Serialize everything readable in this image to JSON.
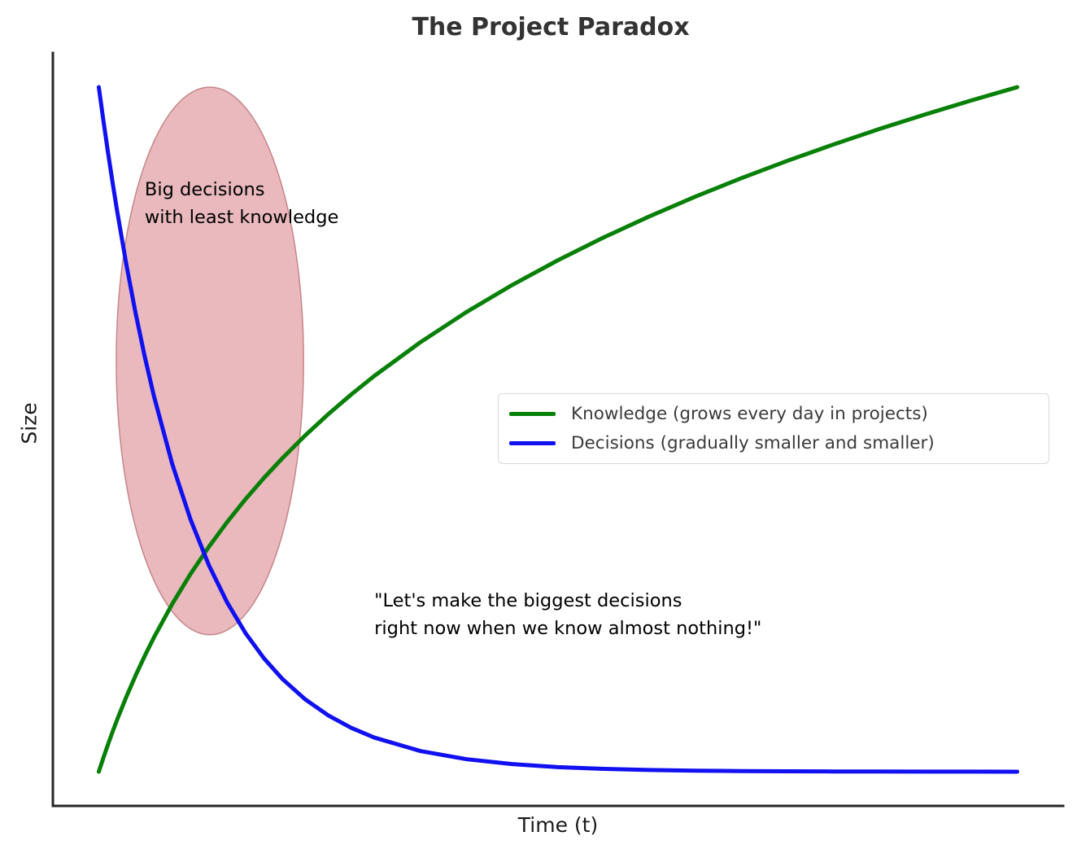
{
  "chart_data": {
    "type": "line",
    "title": "The Project Paradox",
    "xlabel": "Time (t)",
    "ylabel": "Size",
    "xlim": [
      -0.5,
      10.5
    ],
    "ylim": [
      -0.05,
      1.05
    ],
    "grid": false,
    "axis_ticks": "none",
    "spines": "left and bottom only",
    "legend_position": "center right",
    "x": [
      0,
      0.05,
      0.1,
      0.15,
      0.2,
      0.3,
      0.4,
      0.5,
      0.6,
      0.8,
      1,
      1.2,
      1.4,
      1.6,
      1.8,
      2,
      2.25,
      2.5,
      2.75,
      3,
      3.5,
      4,
      4.5,
      5,
      5.5,
      6,
      6.5,
      7,
      7.5,
      8,
      8.5,
      9,
      9.5,
      10
    ],
    "series": [
      {
        "name": "Knowledge (grows every day in projects)",
        "color": "#078007",
        "line_width": 5,
        "values": [
          0,
          0.0203,
          0.0397,
          0.0583,
          0.076,
          0.1094,
          0.1403,
          0.1691,
          0.196,
          0.2451,
          0.2891,
          0.3288,
          0.3651,
          0.3985,
          0.4294,
          0.4581,
          0.4915,
          0.5224,
          0.5512,
          0.5781,
          0.6272,
          0.6712,
          0.7109,
          0.7472,
          0.7806,
          0.8115,
          0.8403,
          0.8672,
          0.8925,
          0.9163,
          0.9389,
          0.9602,
          0.9806,
          1
        ]
      },
      {
        "name": "Decisions (gradually smaller and smaller)",
        "color": "#1010f0",
        "line_width": 5,
        "values": [
          1,
          0.9512,
          0.9048,
          0.8607,
          0.8187,
          0.7408,
          0.6703,
          0.6065,
          0.5488,
          0.4493,
          0.3679,
          0.3012,
          0.2466,
          0.2019,
          0.1653,
          0.1353,
          0.1054,
          0.0821,
          0.0639,
          0.0498,
          0.0302,
          0.0183,
          0.0111,
          0.0067,
          0.0041,
          0.0025,
          0.0015,
          0.0009,
          0.0006,
          0.0003,
          0.0002,
          0.0001,
          0.0001,
          0
        ]
      }
    ],
    "annotations": [
      {
        "text": "Big decisions\nwith least knowledge",
        "x": 0.5,
        "y": 0.87
      },
      {
        "text": "\"Let's make the biggest decisions\nright now when we know almost nothing!\"",
        "x": 3.0,
        "y": 0.27
      }
    ],
    "highlight_ellipse": {
      "center_x": 1.21,
      "center_y": 0.6,
      "radius_x": 1.02,
      "radius_y": 0.4,
      "fill": "rgba(200,80,90,0.4)",
      "stroke": "rgba(173,90,95,0.65)"
    },
    "axis_color": "#262626"
  }
}
